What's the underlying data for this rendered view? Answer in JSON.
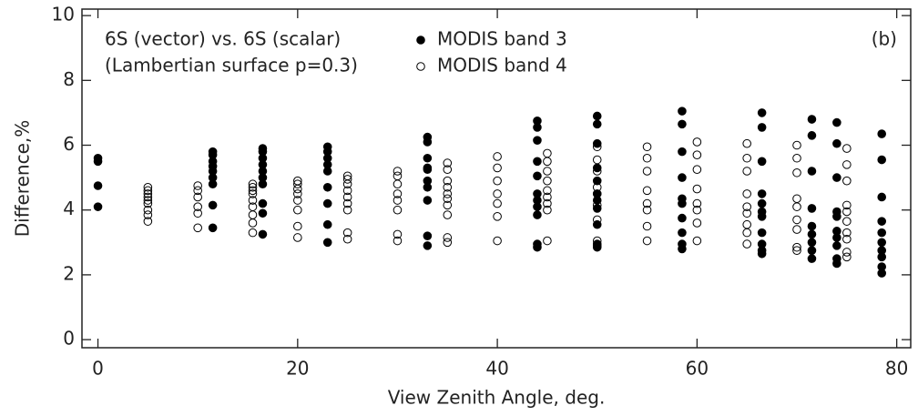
{
  "chart_data": {
    "type": "scatter",
    "annotations": [
      "6S (vector) vs. 6S (scalar)",
      "(Lambertian surface p=0.3)",
      "(b)"
    ],
    "xlabel": "View Zenith Angle, deg.",
    "ylabel": "Difference,%",
    "xlim": [
      -1.6,
      81.4
    ],
    "ylim": [
      -0.25,
      10.2
    ],
    "xticks": [
      0,
      20,
      40,
      60,
      80
    ],
    "yticks": [
      0,
      2,
      4,
      6,
      8,
      10
    ],
    "series": [
      {
        "name": "MODIS band 3",
        "color": "#000000",
        "filled": true,
        "x": [
          0,
          0,
          0,
          0,
          11.5,
          11.5,
          11.5,
          11.5,
          11.5,
          11.5,
          11.5,
          11.5,
          11.5,
          16.5,
          16.5,
          16.5,
          16.5,
          16.5,
          16.5,
          16.5,
          16.5,
          16.5,
          16.5,
          23,
          23,
          23,
          23,
          23,
          23,
          23,
          23,
          23,
          33,
          33,
          33,
          33,
          33,
          33,
          33,
          33,
          33,
          33,
          44,
          44,
          44,
          44,
          44,
          44,
          44,
          44,
          44,
          44,
          44,
          50,
          50,
          50,
          50,
          50,
          50,
          50,
          50,
          50,
          50,
          50,
          58.5,
          58.5,
          58.5,
          58.5,
          58.5,
          58.5,
          58.5,
          58.5,
          58.5,
          58.5,
          66.5,
          66.5,
          66.5,
          66.5,
          66.5,
          66.5,
          66.5,
          66.5,
          66.5,
          66.5,
          66.5,
          71.5,
          71.5,
          71.5,
          71.5,
          71.5,
          71.5,
          71.5,
          71.5,
          71.5,
          74,
          74,
          74,
          74,
          74,
          74,
          74,
          74,
          74,
          74,
          78.5,
          78.5,
          78.5,
          78.5,
          78.5,
          78.5,
          78.5,
          78.5,
          78.5,
          78.5
        ],
        "values": [
          5.6,
          5.5,
          4.75,
          4.1,
          5.8,
          5.7,
          5.5,
          5.35,
          5.2,
          5.0,
          4.8,
          4.15,
          3.45,
          5.9,
          5.8,
          5.6,
          5.4,
          5.2,
          5.0,
          4.8,
          4.2,
          3.9,
          3.25,
          5.95,
          5.8,
          5.6,
          5.4,
          5.2,
          4.7,
          4.2,
          3.55,
          3.0,
          6.25,
          6.1,
          5.6,
          5.3,
          5.25,
          4.9,
          4.7,
          4.3,
          3.2,
          2.9,
          6.75,
          6.55,
          6.15,
          5.5,
          5.05,
          4.5,
          4.3,
          4.1,
          3.85,
          2.95,
          2.85,
          6.9,
          6.65,
          6.05,
          5.3,
          4.9,
          4.5,
          4.3,
          4.05,
          3.55,
          2.95,
          2.85,
          7.05,
          6.65,
          5.8,
          5.0,
          4.35,
          4.2,
          3.75,
          3.3,
          2.95,
          2.8,
          7.0,
          6.55,
          5.5,
          4.5,
          4.2,
          3.95,
          3.8,
          3.3,
          2.95,
          2.75,
          2.65,
          6.8,
          6.3,
          5.2,
          4.05,
          3.5,
          3.25,
          3.0,
          2.75,
          2.5,
          6.7,
          6.05,
          5.0,
          3.95,
          3.8,
          3.35,
          3.15,
          2.9,
          2.5,
          2.35,
          6.35,
          5.55,
          4.4,
          3.65,
          3.3,
          3.0,
          2.75,
          2.55,
          2.25,
          2.05
        ]
      },
      {
        "name": "MODIS band 4",
        "color": "#000000",
        "filled": false,
        "x": [
          5,
          5,
          5,
          5,
          5,
          5,
          5,
          5,
          5,
          10,
          10,
          10,
          10,
          10,
          10,
          15.5,
          15.5,
          15.5,
          15.5,
          15.5,
          15.5,
          15.5,
          15.5,
          15.5,
          20,
          20,
          20,
          20,
          20,
          20,
          20,
          20,
          25,
          25,
          25,
          25,
          25,
          25,
          25,
          25,
          25,
          30,
          30,
          30,
          30,
          30,
          30,
          30,
          30,
          35,
          35,
          35,
          35,
          35,
          35,
          35,
          35,
          35,
          35,
          40,
          40,
          40,
          40,
          40,
          40,
          40,
          45,
          45,
          45,
          45,
          45,
          45,
          45,
          45,
          45,
          50,
          50,
          50,
          50,
          50,
          50,
          50,
          50,
          50,
          55,
          55,
          55,
          55,
          55,
          55,
          55,
          55,
          60,
          60,
          60,
          60,
          60,
          60,
          60,
          60,
          65,
          65,
          65,
          65,
          65,
          65,
          65,
          65,
          65,
          70,
          70,
          70,
          70,
          70,
          70,
          70,
          70,
          70,
          75,
          75,
          75,
          75,
          75,
          75,
          75,
          75,
          75,
          75
        ],
        "values": [
          4.7,
          4.6,
          4.5,
          4.4,
          4.3,
          4.2,
          4.0,
          3.85,
          3.65,
          4.75,
          4.6,
          4.4,
          4.1,
          3.9,
          3.45,
          4.8,
          4.7,
          4.6,
          4.5,
          4.3,
          4.1,
          3.85,
          3.6,
          3.3,
          4.9,
          4.8,
          4.65,
          4.5,
          4.3,
          4.0,
          3.5,
          3.15,
          5.05,
          4.95,
          4.8,
          4.6,
          4.4,
          4.2,
          4.0,
          3.3,
          3.1,
          5.2,
          5.05,
          4.8,
          4.5,
          4.3,
          4.0,
          3.25,
          3.05,
          5.45,
          5.25,
          4.9,
          4.7,
          4.5,
          4.35,
          4.15,
          3.85,
          3.15,
          3.0,
          5.65,
          5.3,
          4.9,
          4.5,
          4.2,
          3.8,
          3.05,
          5.75,
          5.5,
          5.2,
          4.9,
          4.6,
          4.4,
          4.2,
          4.0,
          3.05,
          5.95,
          5.55,
          5.2,
          4.7,
          4.5,
          4.15,
          3.7,
          3.05,
          2.9,
          5.95,
          5.6,
          5.2,
          4.6,
          4.2,
          4.0,
          3.5,
          3.05,
          6.1,
          5.7,
          5.25,
          4.65,
          4.2,
          4.0,
          3.6,
          3.05,
          6.05,
          5.6,
          5.2,
          4.5,
          4.1,
          3.9,
          3.55,
          3.3,
          2.95,
          6.0,
          5.6,
          5.15,
          4.35,
          4.1,
          3.7,
          3.4,
          2.85,
          2.75,
          5.9,
          5.4,
          4.9,
          4.15,
          3.95,
          3.65,
          3.3,
          3.1,
          2.7,
          2.55
        ]
      }
    ]
  }
}
